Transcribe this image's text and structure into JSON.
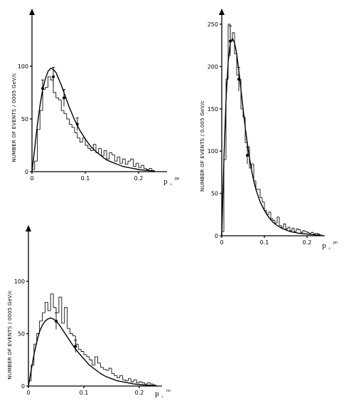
{
  "chart_data": [
    {
      "type": "bar",
      "ylabel": "NUMBER OF EVENTS / 0005 GeV/c",
      "xlabel": "p",
      "xlabel_sub": "⊥",
      "xlabel_sup": "pp",
      "xlim": [
        0,
        0.25
      ],
      "ylim": [
        0,
        140
      ],
      "xticks": [
        {
          "value": 0,
          "label": "0"
        },
        {
          "value": 0.1,
          "label": "0.1"
        },
        {
          "value": 0.2,
          "label": "0.2"
        }
      ],
      "yticks": [
        {
          "value": 0,
          "label": "0"
        },
        {
          "value": 50,
          "label": "50"
        },
        {
          "value": 100,
          "label": "100"
        }
      ],
      "bin_width": 0.005,
      "histogram": [
        2,
        10,
        40,
        58,
        78,
        80,
        90,
        87,
        75,
        70,
        68,
        58,
        55,
        50,
        45,
        42,
        37,
        32,
        28,
        32,
        25,
        22,
        20,
        26,
        18,
        22,
        15,
        20,
        12,
        18,
        16,
        10,
        14,
        8,
        12,
        7,
        10,
        12,
        5,
        8,
        4,
        6,
        3,
        2,
        3,
        1
      ],
      "fit_curve": {
        "x": [
          0,
          0.005,
          0.01,
          0.015,
          0.02,
          0.025,
          0.03,
          0.035,
          0.04,
          0.045,
          0.05,
          0.055,
          0.06,
          0.065,
          0.07,
          0.075,
          0.08,
          0.09,
          0.1,
          0.11,
          0.12,
          0.13,
          0.14,
          0.15,
          0.16,
          0.17,
          0.18,
          0.19,
          0.2,
          0.21,
          0.22,
          0.23
        ],
        "y": [
          0,
          22,
          44,
          63,
          78,
          88,
          95,
          98,
          97,
          94,
          88,
          82,
          75,
          68,
          61,
          55,
          49,
          39,
          31,
          24,
          19,
          15,
          11,
          9,
          7,
          5,
          4,
          3,
          2,
          1.5,
          1,
          0.7
        ]
      },
      "error_points": [
        {
          "x": 0.02,
          "y": 79,
          "err": 8
        },
        {
          "x": 0.04,
          "y": 90,
          "err": 9
        },
        {
          "x": 0.06,
          "y": 70,
          "err": 8
        },
        {
          "x": 0.085,
          "y": 45,
          "err": 6
        }
      ]
    },
    {
      "type": "bar",
      "ylabel": "NUMBER OF EVENTS / 0.005 GeV/c",
      "xlabel": "p",
      "xlabel_sub": "⊥",
      "xlabel_sup": "pn",
      "xlim": [
        0,
        0.25
      ],
      "ylim": [
        0,
        260
      ],
      "xticks": [
        {
          "value": 0,
          "label": "0"
        },
        {
          "value": 0.1,
          "label": "0.1"
        },
        {
          "value": 0.2,
          "label": "0.2"
        }
      ],
      "yticks": [
        {
          "value": 0,
          "label": "0"
        },
        {
          "value": 50,
          "label": "50"
        },
        {
          "value": 100,
          "label": "100"
        },
        {
          "value": 150,
          "label": "150"
        },
        {
          "value": 200,
          "label": "200"
        },
        {
          "value": 250,
          "label": "250"
        }
      ],
      "bin_width": 0.005,
      "histogram": [
        5,
        90,
        185,
        250,
        230,
        240,
        215,
        190,
        185,
        150,
        140,
        110,
        105,
        80,
        85,
        65,
        55,
        55,
        45,
        40,
        30,
        25,
        28,
        20,
        18,
        15,
        22,
        12,
        10,
        14,
        8,
        10,
        6,
        9,
        5,
        8,
        7,
        4,
        6,
        5,
        4,
        3,
        4,
        2,
        3,
        2,
        1
      ],
      "fit_curve": {
        "x": [
          0,
          0.005,
          0.01,
          0.015,
          0.02,
          0.025,
          0.03,
          0.035,
          0.04,
          0.045,
          0.05,
          0.055,
          0.06,
          0.065,
          0.07,
          0.075,
          0.08,
          0.09,
          0.1,
          0.11,
          0.12,
          0.13,
          0.14,
          0.15,
          0.16,
          0.17,
          0.18,
          0.19,
          0.2,
          0.21,
          0.22,
          0.23
        ],
        "y": [
          0,
          90,
          160,
          205,
          228,
          233,
          228,
          215,
          195,
          173,
          150,
          128,
          109,
          92,
          77,
          65,
          55,
          40,
          30,
          22,
          16,
          12,
          9,
          7,
          5,
          4,
          3,
          2.5,
          2,
          1.5,
          1,
          0.8
        ]
      },
      "error_points": [
        {
          "x": 0.02,
          "y": 230,
          "err": 18
        },
        {
          "x": 0.04,
          "y": 185,
          "err": 14
        },
        {
          "x": 0.06,
          "y": 95,
          "err": 10
        }
      ]
    },
    {
      "type": "bar",
      "ylabel": "NUMBER OF EVENTS / 0005 GeV/c",
      "xlabel": "p",
      "xlabel_sub": "⊥",
      "xlabel_sup": "nn",
      "xlim": [
        0,
        0.25
      ],
      "ylim": [
        0,
        140
      ],
      "xticks": [
        {
          "value": 0,
          "label": "0"
        },
        {
          "value": 0.1,
          "label": "0.1"
        },
        {
          "value": 0.2,
          "label": "0.2"
        }
      ],
      "yticks": [
        {
          "value": 0,
          "label": "0"
        },
        {
          "value": 50,
          "label": "50"
        },
        {
          "value": 100,
          "label": "100"
        }
      ],
      "bin_width": 0.005,
      "histogram": [
        5,
        20,
        40,
        50,
        62,
        70,
        80,
        72,
        88,
        75,
        70,
        85,
        60,
        75,
        55,
        50,
        48,
        40,
        35,
        33,
        30,
        28,
        25,
        20,
        28,
        22,
        18,
        16,
        15,
        17,
        12,
        10,
        8,
        10,
        6,
        5,
        7,
        4,
        6,
        3,
        4,
        3,
        2,
        3,
        2,
        1
      ],
      "fit_curve": {
        "x": [
          0,
          0.005,
          0.01,
          0.015,
          0.02,
          0.025,
          0.03,
          0.035,
          0.04,
          0.045,
          0.05,
          0.055,
          0.06,
          0.065,
          0.07,
          0.075,
          0.08,
          0.09,
          0.1,
          0.11,
          0.12,
          0.13,
          0.14,
          0.15,
          0.16,
          0.17,
          0.18,
          0.19,
          0.2,
          0.21,
          0.22,
          0.23
        ],
        "y": [
          0,
          15,
          30,
          42,
          52,
          58,
          62,
          64,
          65,
          64,
          62,
          59,
          55,
          51,
          47,
          43,
          39,
          32,
          26,
          20,
          16,
          12,
          9,
          7,
          5,
          4,
          3,
          2,
          1.5,
          1,
          0.7,
          0.5
        ]
      },
      "error_points": [
        {
          "x": 0.05,
          "y": 62,
          "err": 8
        },
        {
          "x": 0.085,
          "y": 38,
          "err": 6
        }
      ]
    }
  ]
}
